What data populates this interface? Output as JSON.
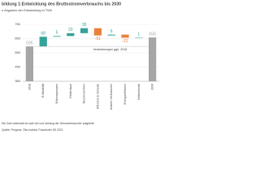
{
  "chart_data": {
    "type": "waterfall",
    "title": "bildung 1:Entwicklung des Bruttostromverbrauchs bis 2030",
    "subtitle": "n Angaben der Entwicklung in TWh",
    "categories": [
      "2018",
      "E-Mobilität",
      "Wärmepumpen",
      "Elektrolyse",
      "Rechenzentren",
      "Effizienz & Verluste",
      "Andere Verbraucher",
      "Energieeffizienz",
      "Netzverluste",
      "2030"
    ],
    "values": [
      595,
      68,
      5,
      20,
      35,
      -51,
      6,
      -22,
      1,
      658
    ],
    "totals": [
      true,
      false,
      false,
      false,
      false,
      false,
      false,
      false,
      false,
      true
    ],
    "colors": {
      "total": "#a6a6a6",
      "increase": "#35a39a",
      "decrease": "#e8823a"
    },
    "annotation": "Veränderungen ggü. 2018",
    "ylim": [
      350,
      750
    ],
    "yticks": [
      350,
      450,
      550,
      650,
      750
    ],
    "grid": true,
    "notes": [
      "Die Zahl unterhalb ist nach Art und Umfang der Stromverbraucher aufgeteilt.",
      "Quelle: Prognos, Öko-Institut, Fraunhofer ISI 2021"
    ]
  }
}
